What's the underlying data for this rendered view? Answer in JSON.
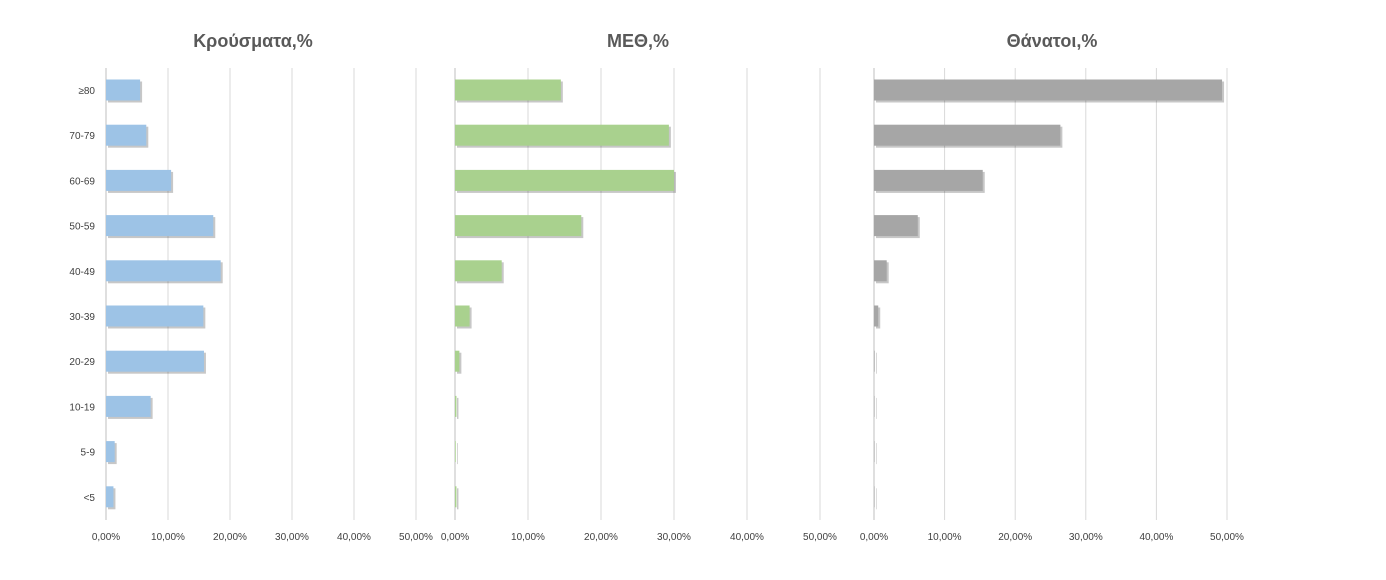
{
  "chart_data": [
    {
      "type": "bar",
      "orientation": "horizontal",
      "title": "Κρούσματα,%",
      "categories": [
        "≥80",
        "70-79",
        "60-69",
        "50-59",
        "40-49",
        "30-39",
        "20-29",
        "10-19",
        "5-9",
        "<5"
      ],
      "values": [
        5.5,
        6.5,
        10.5,
        17.3,
        18.5,
        15.7,
        15.8,
        7.2,
        1.4,
        1.2
      ],
      "xlim": [
        0,
        50
      ],
      "tick_labels": [
        "0,00%",
        "10,00%",
        "20,00%",
        "30,00%",
        "40,00%",
        "50,00%"
      ],
      "color": "#9dc3e6",
      "grid": true
    },
    {
      "type": "bar",
      "orientation": "horizontal",
      "title": "ΜΕΘ,%",
      "categories": [
        "≥80",
        "70-79",
        "60-69",
        "50-59",
        "40-49",
        "30-39",
        "20-29",
        "10-19",
        "5-9",
        "<5"
      ],
      "values": [
        14.5,
        29.3,
        30.0,
        17.3,
        6.4,
        2.0,
        0.6,
        0.2,
        0.1,
        0.2
      ],
      "xlim": [
        0,
        50
      ],
      "tick_labels": [
        "0,00%",
        "10,00%",
        "20,00%",
        "30,00%",
        "40,00%",
        "50,00%"
      ],
      "color": "#a9d18e",
      "grid": true
    },
    {
      "type": "bar",
      "orientation": "horizontal",
      "title": "Θάνατοι,%",
      "categories": [
        "≥80",
        "70-79",
        "60-69",
        "50-59",
        "40-49",
        "30-39",
        "20-29",
        "10-19",
        "5-9",
        "<5"
      ],
      "values": [
        49.3,
        26.4,
        15.4,
        6.2,
        1.8,
        0.6,
        0.1,
        0.05,
        0.0,
        0.02
      ],
      "xlim": [
        0,
        50
      ],
      "tick_labels": [
        "0,00%",
        "10,00%",
        "20,00%",
        "30,00%",
        "40,00%",
        "50,00%"
      ],
      "color": "#a6a6a6",
      "grid": true
    }
  ]
}
